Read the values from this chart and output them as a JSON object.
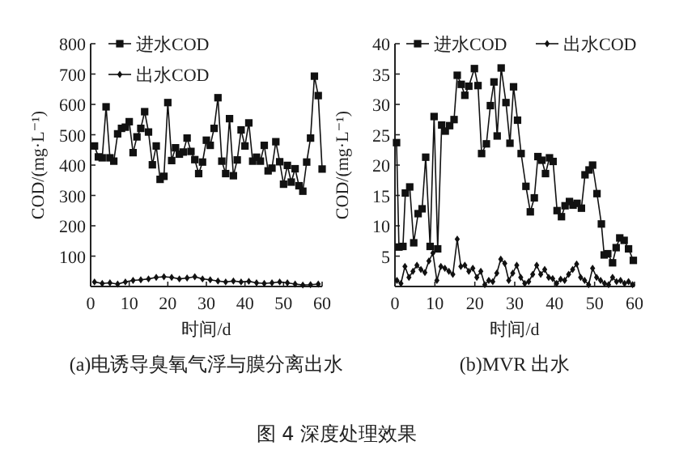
{
  "chart_data": [
    {
      "type": "line",
      "title": "(a)电诱导臭氧气浮与膜分离出水",
      "xlabel": "时间/d",
      "ylabel": "COD/(mg·L⁻¹)",
      "xlim": [
        0,
        60
      ],
      "xticks": [
        0,
        10,
        20,
        30,
        40,
        50,
        60
      ],
      "ylim": [
        0,
        800
      ],
      "yticks": [
        100,
        200,
        300,
        400,
        500,
        600,
        700,
        800
      ],
      "legend": "top left",
      "annotations": [
        "图 4 深度处理效果"
      ],
      "series": [
        {
          "name": "进水COD",
          "color": "#111111",
          "marker": "square",
          "x": [
            1,
            2,
            3,
            4,
            5,
            6,
            7,
            8,
            9,
            10,
            11,
            12,
            13,
            14,
            15,
            16,
            17,
            18,
            19,
            20,
            21,
            22,
            23,
            24,
            25,
            26,
            27,
            28,
            29,
            30,
            31,
            32,
            33,
            34,
            35,
            36,
            37,
            38,
            39,
            40,
            41,
            42,
            43,
            44,
            45,
            46,
            47,
            48,
            49,
            50,
            51,
            52,
            53,
            54,
            55,
            56,
            57,
            58,
            59,
            60
          ],
          "values": [
            463,
            427,
            424,
            592,
            424,
            413,
            503,
            521,
            525,
            543,
            441,
            493,
            521,
            576,
            509,
            401,
            463,
            353,
            363,
            606,
            415,
            457,
            436,
            443,
            489,
            445,
            418,
            372,
            410,
            482,
            465,
            521,
            622,
            413,
            372,
            553,
            365,
            417,
            516,
            463,
            539,
            413,
            426,
            413,
            465,
            381,
            390,
            477,
            411,
            337,
            399,
            344,
            388,
            332,
            314,
            410,
            489,
            693,
            629,
            387
          ]
        },
        {
          "name": "出水COD",
          "color": "#111111",
          "marker": "diamond",
          "x": [
            1,
            3,
            5,
            7,
            9,
            11,
            13,
            15,
            17,
            19,
            21,
            23,
            25,
            27,
            29,
            31,
            33,
            35,
            37,
            39,
            41,
            43,
            45,
            47,
            49,
            51,
            53,
            55,
            57,
            59
          ],
          "values": [
            15,
            10,
            12,
            8,
            15,
            20,
            22,
            25,
            30,
            32,
            30,
            25,
            28,
            32,
            25,
            22,
            18,
            15,
            18,
            15,
            17,
            12,
            10,
            12,
            15,
            12,
            8,
            5,
            6,
            8
          ]
        }
      ]
    },
    {
      "type": "line",
      "title": "(b)MVR 出水",
      "xlabel": "时间/d",
      "ylabel": "COD/(mg·L⁻¹)",
      "xlim": [
        0,
        60
      ],
      "xticks": [
        0,
        10,
        20,
        30,
        40,
        50,
        60
      ],
      "ylim": [
        0,
        40
      ],
      "yticks": [
        5,
        10,
        15,
        20,
        25,
        30,
        35,
        40
      ],
      "legend": "top",
      "series": [
        {
          "name": "进水COD",
          "color": "#111111",
          "marker": "square",
          "x": [
            0.4,
            1,
            2,
            2.6,
            3.7,
            4.7,
            5.8,
            6.8,
            7.7,
            8.8,
            9.8,
            10.7,
            11.7,
            12.6,
            13.7,
            14.8,
            15.6,
            16.6,
            17.5,
            18.5,
            19.9,
            20.8,
            21.7,
            22.9,
            23.9,
            24.8,
            25.6,
            26.6,
            27.8,
            28.8,
            29.7,
            30.7,
            31.6,
            32.8,
            33.9,
            34.9,
            35.8,
            36.8,
            37.7,
            38.7,
            39.6,
            40.6,
            41.7,
            42.6,
            43.7,
            44.6,
            45.6,
            46.7,
            47.6,
            48.6,
            49.5,
            50.6,
            51.7,
            52.4,
            53.3,
            54.5,
            55.4,
            56.3,
            57.4,
            58.5,
            59.7
          ],
          "values": [
            23.7,
            6.5,
            6.6,
            15.4,
            16.4,
            7.2,
            12.0,
            12.8,
            21.3,
            6.6,
            28.0,
            6.2,
            26.6,
            25.6,
            26.5,
            27.5,
            34.8,
            33.3,
            31.5,
            33.0,
            35.9,
            33.1,
            21.9,
            23.5,
            29.8,
            33.7,
            24.8,
            36.0,
            30.3,
            23.6,
            32.9,
            27.4,
            21.9,
            16.5,
            12.3,
            14.6,
            21.4,
            20.8,
            18.6,
            21.2,
            20.6,
            12.5,
            11.5,
            13.3,
            14.0,
            13.4,
            13.7,
            12.9,
            18.4,
            19.2,
            20.0,
            15.3,
            10.3,
            5.2,
            5.4,
            3.9,
            6.4,
            8.0,
            7.6,
            6.2,
            4.3
          ]
        },
        {
          "name": "出水COD",
          "color": "#111111",
          "marker": "diamond",
          "x": [
            0.5,
            1.5,
            2.5,
            3.5,
            4.5,
            5.5,
            6.5,
            7.5,
            8.5,
            9.5,
            10.5,
            11.5,
            12.5,
            13.5,
            14.5,
            15.6,
            16.5,
            17.5,
            18.5,
            19.5,
            20.5,
            21.5,
            22.5,
            23.5,
            24.5,
            25.5,
            26.5,
            27.5,
            28.5,
            29.5,
            30.5,
            31.5,
            32.5,
            33.5,
            34.5,
            35.5,
            36.5,
            37.5,
            38.5,
            39.5,
            40.5,
            41.5,
            42.5,
            43.5,
            44.5,
            45.5,
            46.5,
            47.5,
            48.5,
            49.5,
            50.5,
            51.5,
            52.5,
            53.5,
            54.5,
            55.5,
            56.5,
            57.5,
            58.5,
            59.5
          ],
          "values": [
            1.0,
            0.5,
            3.3,
            1.5,
            2.5,
            3.5,
            2.8,
            2.3,
            4.2,
            5.5,
            1.0,
            3.3,
            3.0,
            2.5,
            2.0,
            7.8,
            3.3,
            3.5,
            2.5,
            3.0,
            1.5,
            2.5,
            0.3,
            1.0,
            0.8,
            2.2,
            4.5,
            3.8,
            1.0,
            2.2,
            3.5,
            1.5,
            0.5,
            0.8,
            2.0,
            3.5,
            2.0,
            2.8,
            1.5,
            1.3,
            0.5,
            1.2,
            1.0,
            2.0,
            2.8,
            3.7,
            1.5,
            1.0,
            0.3,
            3.0,
            1.5,
            1.0,
            0.5,
            0.3,
            1.5,
            0.8,
            1.0,
            0.5,
            0.8,
            0.3
          ]
        }
      ]
    }
  ]
}
